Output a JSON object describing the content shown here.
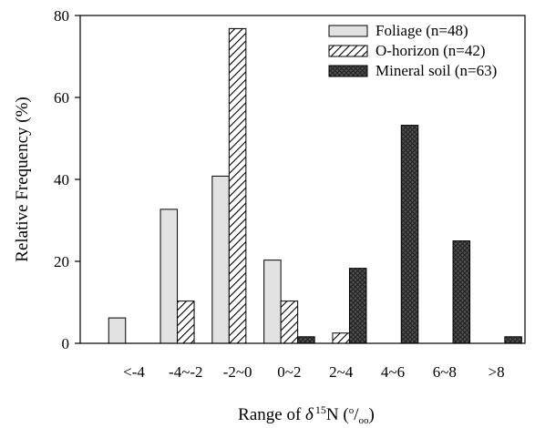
{
  "chart_data": {
    "type": "bar",
    "categories": [
      "<-4",
      "-4~-2",
      "-2~0",
      "0~2",
      "2~4",
      "4~6",
      "6~8",
      ">8"
    ],
    "series": [
      {
        "name": "Foliage (n=48)",
        "values": [
          6.2,
          32.7,
          40.8,
          20.3,
          0,
          0,
          0,
          0
        ]
      },
      {
        "name": "O-horizon (n=42)",
        "values": [
          0,
          10.3,
          76.8,
          10.3,
          2.5,
          0,
          0,
          0
        ]
      },
      {
        "name": "Mineral soil (n=63)",
        "values": [
          0,
          0,
          0,
          1.6,
          18.3,
          53.2,
          25.0,
          1.6
        ]
      }
    ],
    "ylabel": "Relative Frequency  (%)",
    "xlabel_parts": {
      "prefix": "Range of ",
      "delta": "δ",
      "superscript": "15",
      "element": "N (",
      "unit_num": "o",
      "unit_den": "oo",
      "suffix": ")"
    },
    "ylim": [
      0,
      80
    ],
    "yticks": [
      0,
      20,
      40,
      60,
      80
    ],
    "legend_position": "top-right",
    "series_styles": [
      "light-gray",
      "diagonal-hatch",
      "dark-crosshatch"
    ]
  }
}
